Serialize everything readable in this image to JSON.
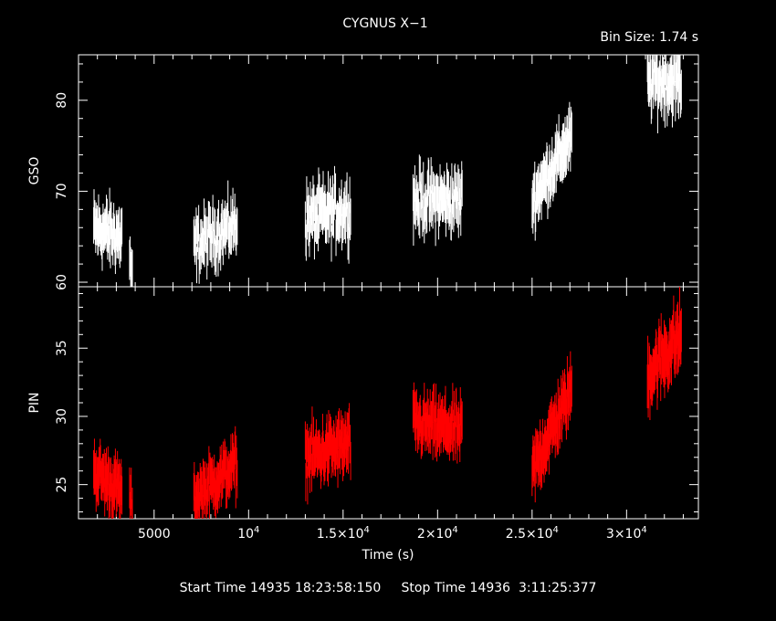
{
  "colors": {
    "background": "#000000",
    "axes": "#ffffff",
    "gso": "#ffffff",
    "pin": "#ff0000"
  },
  "header": {
    "title": "CYGNUS X−1",
    "bin_size": "Bin Size: 1.74 s"
  },
  "footer": {
    "start_time": "Start Time 14935 18:23:58:150",
    "stop_time": "Stop Time 14936  3:11:25:377"
  },
  "chart_data": [
    {
      "type": "scatter",
      "panel": "top",
      "ylabel": "GSO",
      "xlim": [
        1000,
        33800
      ],
      "ylim": [
        59.5,
        85
      ],
      "yticks": [
        60,
        70,
        80
      ],
      "color": "#ffffff",
      "segments": [
        {
          "x": [
            1800,
            3300
          ],
          "y_start": 66,
          "y_end": 65,
          "spread": 2.2,
          "err": 2.0,
          "n": 70
        },
        {
          "x": [
            3700,
            3850
          ],
          "y_start": 63,
          "y_end": 60,
          "spread": 1.5,
          "err": 2.2,
          "n": 6
        },
        {
          "x": [
            7100,
            9400
          ],
          "y_start": 64,
          "y_end": 66.5,
          "spread": 2.0,
          "err": 2.0,
          "n": 90
        },
        {
          "x": [
            13000,
            15400
          ],
          "y_start": 67,
          "y_end": 68,
          "spread": 2.3,
          "err": 2.0,
          "n": 100
        },
        {
          "x": [
            18700,
            21300
          ],
          "y_start": 69,
          "y_end": 69,
          "spread": 2.2,
          "err": 2.0,
          "n": 110
        },
        {
          "x": [
            25000,
            27100
          ],
          "y_start": 69,
          "y_end": 76,
          "spread": 1.8,
          "err": 2.2,
          "n": 90
        },
        {
          "x": [
            31100,
            32900
          ],
          "y_start": 82,
          "y_end": 82,
          "spread": 2.2,
          "err": 2.2,
          "n": 80
        }
      ]
    },
    {
      "type": "scatter",
      "panel": "bottom",
      "ylabel": "PIN",
      "xlabel": "Time (s)",
      "xlim": [
        1000,
        33800
      ],
      "ylim": [
        22.5,
        39.5
      ],
      "yticks": [
        25,
        30,
        35
      ],
      "xticks": [
        {
          "value": 5000,
          "label": "5000"
        },
        {
          "value": 10000,
          "label": "10",
          "exp": "4"
        },
        {
          "value": 15000,
          "label": "1.5×10",
          "exp": "4"
        },
        {
          "value": 20000,
          "label": "2×10",
          "exp": "4"
        },
        {
          "value": 25000,
          "label": "2.5×10",
          "exp": "4"
        },
        {
          "value": 30000,
          "label": "3×10",
          "exp": "4"
        }
      ],
      "color": "#ff0000",
      "segments": [
        {
          "x": [
            1800,
            3300
          ],
          "y_start": 26,
          "y_end": 24.5,
          "spread": 1.2,
          "err": 1.4,
          "n": 70
        },
        {
          "x": [
            3700,
            3850
          ],
          "y_start": 24,
          "y_end": 23,
          "spread": 1.0,
          "err": 1.5,
          "n": 6
        },
        {
          "x": [
            7100,
            9400
          ],
          "y_start": 24,
          "y_end": 26.5,
          "spread": 1.2,
          "err": 1.4,
          "n": 90
        },
        {
          "x": [
            13000,
            15400
          ],
          "y_start": 27,
          "y_end": 28,
          "spread": 1.4,
          "err": 1.4,
          "n": 100
        },
        {
          "x": [
            18700,
            21300
          ],
          "y_start": 29.5,
          "y_end": 29,
          "spread": 1.3,
          "err": 1.4,
          "n": 110
        },
        {
          "x": [
            25000,
            27100
          ],
          "y_start": 26,
          "y_end": 32,
          "spread": 1.3,
          "err": 1.5,
          "n": 90
        },
        {
          "x": [
            31100,
            32900
          ],
          "y_start": 33,
          "y_end": 36,
          "spread": 1.6,
          "err": 1.6,
          "n": 80
        }
      ]
    }
  ]
}
